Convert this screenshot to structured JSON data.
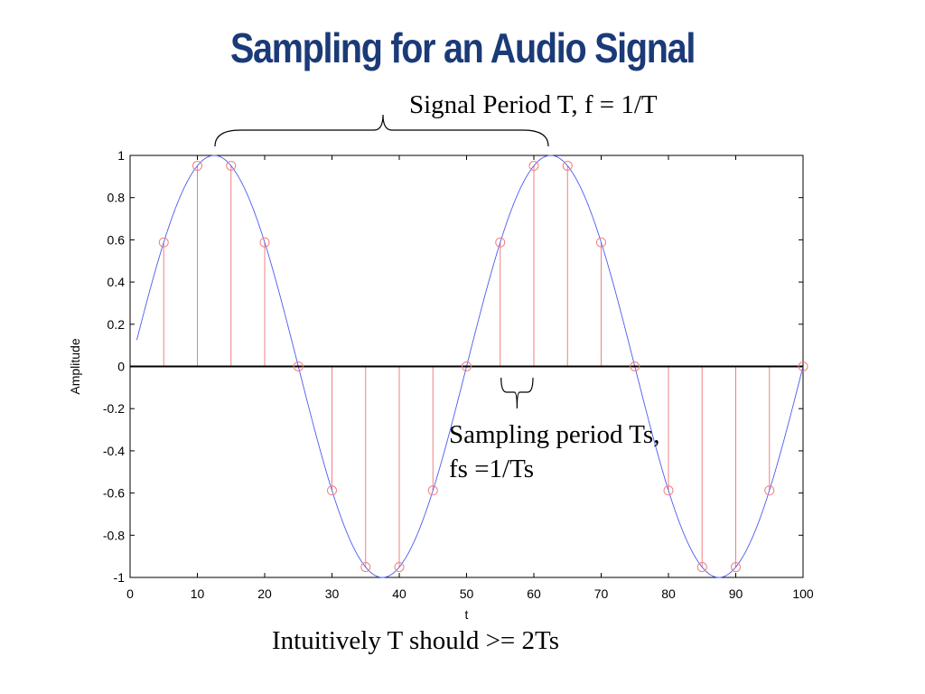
{
  "slide": {
    "title": "Sampling for an Audio Signal",
    "period_annotation": "Signal Period T, f = 1/T",
    "sampling_annotation_line1": "Sampling period Ts,",
    "sampling_annotation_line2": "fs =1/Ts",
    "footnote": "Intuitively T should >= 2Ts"
  },
  "colors": {
    "title": "#1b3a78",
    "continuous_signal": "#4a5cf0",
    "samples": "#f08080",
    "axis": "#000000"
  },
  "chart_data": {
    "type": "line",
    "xlabel": "t",
    "ylabel": "Amplitude",
    "xlim": [
      0,
      100
    ],
    "ylim": [
      -1,
      1
    ],
    "xticks": [
      0,
      10,
      20,
      30,
      40,
      50,
      60,
      70,
      80,
      90,
      100
    ],
    "yticks": [
      -1,
      -0.8,
      -0.6,
      -0.4,
      -0.2,
      0,
      0.2,
      0.4,
      0.6,
      0.8,
      1
    ],
    "ytick_labels": [
      "-1",
      "-0.8",
      "-0.6",
      "-0.4",
      "-0.2",
      "0",
      "0.2",
      "0.4",
      "0.6",
      "0.8",
      "1"
    ],
    "grid": false,
    "continuous_signal": {
      "function": "sin(2*pi*t/50)",
      "period": 50,
      "t_start": 1,
      "t_end": 100
    },
    "samples": {
      "style": "stem",
      "t": [
        5,
        10,
        15,
        20,
        25,
        30,
        35,
        40,
        45,
        50,
        55,
        60,
        65,
        70,
        75,
        80,
        85,
        90,
        95,
        100
      ],
      "values": [
        0.588,
        0.951,
        0.951,
        0.588,
        0,
        -0.588,
        -0.951,
        -0.951,
        -0.588,
        0,
        0.588,
        0.951,
        0.951,
        0.588,
        0,
        -0.588,
        -0.951,
        -0.951,
        -0.588,
        0
      ]
    }
  }
}
